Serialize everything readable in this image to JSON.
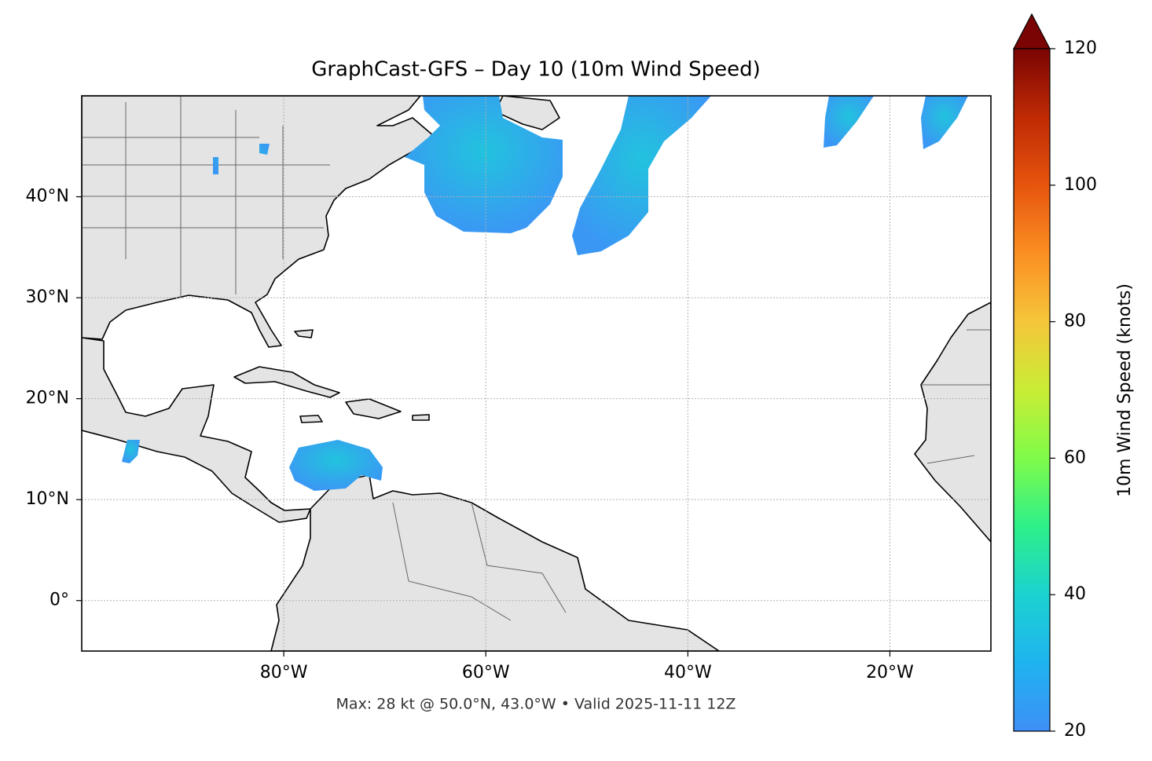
{
  "title": "GraphCast-GFS – Day 10 (10m Wind Speed)",
  "footnote": "Max: 28 kt @ 50.0°N, 43.0°W • Valid 2025-11-11 12Z",
  "map": {
    "xlim": [
      -100,
      -10
    ],
    "ylim": [
      -5,
      50
    ],
    "grid": true,
    "xticks": [
      {
        "value": -80,
        "label": "80°W"
      },
      {
        "value": -60,
        "label": "60°W"
      },
      {
        "value": -40,
        "label": "40°W"
      },
      {
        "value": -20,
        "label": "20°W"
      }
    ],
    "yticks": [
      {
        "value": 0,
        "label": "0°"
      },
      {
        "value": 10,
        "label": "10°N"
      },
      {
        "value": 20,
        "label": "20°N"
      },
      {
        "value": 30,
        "label": "30°N"
      },
      {
        "value": 40,
        "label": "40°N"
      }
    ]
  },
  "colorbar": {
    "label": "10m Wind Speed (knots)",
    "lim": [
      20,
      120
    ],
    "ticks": [
      20,
      40,
      60,
      80,
      100,
      120
    ]
  }
}
